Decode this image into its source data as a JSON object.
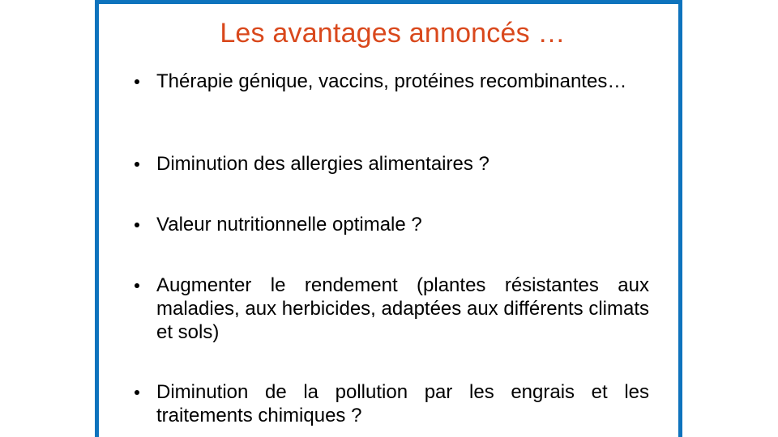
{
  "slide": {
    "title": "Les avantages annoncés …",
    "bullets": [
      "Thérapie génique, vaccins, protéines recombinantes…",
      "Diminution des allergies alimentaires ?",
      "Valeur nutritionnelle optimale ?",
      "Augmenter le rendement (plantes résistantes aux maladies, aux herbicides, adaptées aux différents climats et sols)",
      "Diminution de la pollution par les engrais et les traitements chimiques ?"
    ]
  },
  "colors": {
    "frame_border": "#0e73bd",
    "title": "#d9481c",
    "text": "#000000",
    "background": "#ffffff"
  }
}
